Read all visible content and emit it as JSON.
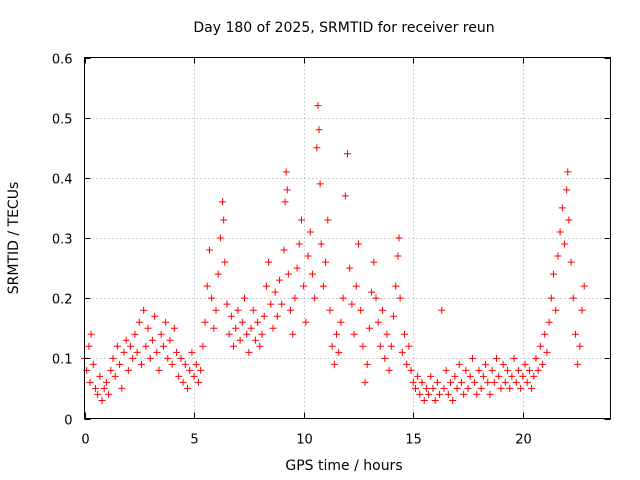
{
  "chart_data": {
    "type": "scatter",
    "title": "Day 180 of 2025, SRMTID for receiver reun",
    "xlabel": "GPS time / hours",
    "ylabel": "SRMTID / TECUs",
    "xlim": [
      0,
      24
    ],
    "ylim": [
      0,
      0.6
    ],
    "xticks": [
      0,
      5,
      10,
      15,
      20
    ],
    "xtick_labels": [
      "0",
      "5",
      "10",
      "15",
      "20"
    ],
    "yticks": [
      0,
      0.1,
      0.2,
      0.3,
      0.4,
      0.5,
      0.6
    ],
    "ytick_labels": [
      "0",
      "0.1",
      "0.2",
      "0.3",
      "0.4",
      "0.5",
      "0.6"
    ],
    "grid": true,
    "marker": "+",
    "color": "#ff0000",
    "series": [
      {
        "name": "SRMTID",
        "points": [
          [
            0.0,
            0.1
          ],
          [
            0.1,
            0.08
          ],
          [
            0.2,
            0.12
          ],
          [
            0.25,
            0.06
          ],
          [
            0.3,
            0.14
          ],
          [
            0.4,
            0.09
          ],
          [
            0.5,
            0.05
          ],
          [
            0.6,
            0.04
          ],
          [
            0.7,
            0.07
          ],
          [
            0.8,
            0.03
          ],
          [
            0.9,
            0.05
          ],
          [
            1.0,
            0.06
          ],
          [
            1.1,
            0.04
          ],
          [
            1.2,
            0.08
          ],
          [
            1.3,
            0.1
          ],
          [
            1.4,
            0.07
          ],
          [
            1.5,
            0.12
          ],
          [
            1.6,
            0.09
          ],
          [
            1.7,
            0.05
          ],
          [
            1.8,
            0.11
          ],
          [
            1.9,
            0.13
          ],
          [
            2.0,
            0.08
          ],
          [
            2.1,
            0.12
          ],
          [
            2.2,
            0.1
          ],
          [
            2.3,
            0.14
          ],
          [
            2.4,
            0.11
          ],
          [
            2.5,
            0.16
          ],
          [
            2.6,
            0.09
          ],
          [
            2.7,
            0.18
          ],
          [
            2.8,
            0.12
          ],
          [
            2.9,
            0.15
          ],
          [
            3.0,
            0.1
          ],
          [
            3.1,
            0.13
          ],
          [
            3.2,
            0.17
          ],
          [
            3.3,
            0.11
          ],
          [
            3.4,
            0.08
          ],
          [
            3.5,
            0.14
          ],
          [
            3.6,
            0.12
          ],
          [
            3.7,
            0.16
          ],
          [
            3.8,
            0.1
          ],
          [
            3.9,
            0.13
          ],
          [
            4.0,
            0.09
          ],
          [
            4.1,
            0.15
          ],
          [
            4.2,
            0.11
          ],
          [
            4.3,
            0.07
          ],
          [
            4.4,
            0.1
          ],
          [
            4.5,
            0.06
          ],
          [
            4.6,
            0.09
          ],
          [
            4.7,
            0.05
          ],
          [
            4.8,
            0.08
          ],
          [
            4.9,
            0.11
          ],
          [
            5.0,
            0.07
          ],
          [
            5.1,
            0.09
          ],
          [
            5.2,
            0.06
          ],
          [
            5.3,
            0.08
          ],
          [
            5.4,
            0.12
          ],
          [
            5.5,
            0.16
          ],
          [
            5.6,
            0.22
          ],
          [
            5.7,
            0.28
          ],
          [
            5.8,
            0.2
          ],
          [
            5.9,
            0.15
          ],
          [
            6.0,
            0.18
          ],
          [
            6.1,
            0.24
          ],
          [
            6.2,
            0.3
          ],
          [
            6.3,
            0.36
          ],
          [
            6.35,
            0.33
          ],
          [
            6.4,
            0.26
          ],
          [
            6.5,
            0.19
          ],
          [
            6.6,
            0.14
          ],
          [
            6.7,
            0.17
          ],
          [
            6.8,
            0.12
          ],
          [
            6.9,
            0.15
          ],
          [
            7.0,
            0.18
          ],
          [
            7.1,
            0.13
          ],
          [
            7.2,
            0.16
          ],
          [
            7.3,
            0.2
          ],
          [
            7.4,
            0.14
          ],
          [
            7.5,
            0.11
          ],
          [
            7.6,
            0.15
          ],
          [
            7.7,
            0.18
          ],
          [
            7.8,
            0.13
          ],
          [
            7.9,
            0.16
          ],
          [
            8.0,
            0.12
          ],
          [
            8.1,
            0.14
          ],
          [
            8.2,
            0.17
          ],
          [
            8.3,
            0.22
          ],
          [
            8.4,
            0.26
          ],
          [
            8.5,
            0.19
          ],
          [
            8.6,
            0.15
          ],
          [
            8.7,
            0.21
          ],
          [
            8.8,
            0.17
          ],
          [
            8.9,
            0.23
          ],
          [
            9.0,
            0.19
          ],
          [
            9.1,
            0.28
          ],
          [
            9.15,
            0.36
          ],
          [
            9.2,
            0.41
          ],
          [
            9.25,
            0.38
          ],
          [
            9.3,
            0.24
          ],
          [
            9.4,
            0.18
          ],
          [
            9.5,
            0.14
          ],
          [
            9.6,
            0.2
          ],
          [
            9.7,
            0.25
          ],
          [
            9.8,
            0.29
          ],
          [
            9.9,
            0.33
          ],
          [
            10.0,
            0.22
          ],
          [
            10.1,
            0.16
          ],
          [
            10.2,
            0.27
          ],
          [
            10.3,
            0.31
          ],
          [
            10.4,
            0.24
          ],
          [
            10.5,
            0.2
          ],
          [
            10.6,
            0.45
          ],
          [
            10.65,
            0.52
          ],
          [
            10.7,
            0.48
          ],
          [
            10.75,
            0.39
          ],
          [
            10.8,
            0.29
          ],
          [
            10.9,
            0.22
          ],
          [
            11.0,
            0.26
          ],
          [
            11.1,
            0.33
          ],
          [
            11.2,
            0.18
          ],
          [
            11.3,
            0.12
          ],
          [
            11.4,
            0.09
          ],
          [
            11.5,
            0.14
          ],
          [
            11.6,
            0.11
          ],
          [
            11.7,
            0.16
          ],
          [
            11.8,
            0.2
          ],
          [
            11.9,
            0.37
          ],
          [
            12.0,
            0.44
          ],
          [
            12.1,
            0.25
          ],
          [
            12.2,
            0.19
          ],
          [
            12.3,
            0.14
          ],
          [
            12.4,
            0.22
          ],
          [
            12.5,
            0.29
          ],
          [
            12.6,
            0.18
          ],
          [
            12.7,
            0.12
          ],
          [
            12.8,
            0.06
          ],
          [
            12.9,
            0.09
          ],
          [
            13.0,
            0.15
          ],
          [
            13.1,
            0.21
          ],
          [
            13.2,
            0.26
          ],
          [
            13.3,
            0.2
          ],
          [
            13.4,
            0.16
          ],
          [
            13.5,
            0.12
          ],
          [
            13.6,
            0.18
          ],
          [
            13.7,
            0.1
          ],
          [
            13.8,
            0.14
          ],
          [
            13.9,
            0.08
          ],
          [
            14.0,
            0.12
          ],
          [
            14.1,
            0.17
          ],
          [
            14.2,
            0.22
          ],
          [
            14.3,
            0.27
          ],
          [
            14.35,
            0.3
          ],
          [
            14.4,
            0.2
          ],
          [
            14.5,
            0.11
          ],
          [
            14.6,
            0.14
          ],
          [
            14.7,
            0.09
          ],
          [
            14.8,
            0.12
          ],
          [
            14.9,
            0.08
          ],
          [
            15.0,
            0.06
          ],
          [
            15.1,
            0.05
          ],
          [
            15.2,
            0.07
          ],
          [
            15.3,
            0.04
          ],
          [
            15.4,
            0.06
          ],
          [
            15.5,
            0.03
          ],
          [
            15.6,
            0.05
          ],
          [
            15.7,
            0.04
          ],
          [
            15.8,
            0.07
          ],
          [
            15.9,
            0.05
          ],
          [
            16.0,
            0.03
          ],
          [
            16.1,
            0.06
          ],
          [
            16.2,
            0.04
          ],
          [
            16.3,
            0.18
          ],
          [
            16.4,
            0.05
          ],
          [
            16.5,
            0.08
          ],
          [
            16.6,
            0.04
          ],
          [
            16.7,
            0.06
          ],
          [
            16.8,
            0.03
          ],
          [
            16.9,
            0.07
          ],
          [
            17.0,
            0.05
          ],
          [
            17.1,
            0.09
          ],
          [
            17.2,
            0.06
          ],
          [
            17.3,
            0.04
          ],
          [
            17.4,
            0.08
          ],
          [
            17.5,
            0.05
          ],
          [
            17.6,
            0.07
          ],
          [
            17.7,
            0.1
          ],
          [
            17.8,
            0.06
          ],
          [
            17.9,
            0.04
          ],
          [
            18.0,
            0.08
          ],
          [
            18.1,
            0.05
          ],
          [
            18.2,
            0.07
          ],
          [
            18.3,
            0.09
          ],
          [
            18.4,
            0.06
          ],
          [
            18.5,
            0.04
          ],
          [
            18.6,
            0.08
          ],
          [
            18.7,
            0.06
          ],
          [
            18.8,
            0.1
          ],
          [
            18.9,
            0.07
          ],
          [
            19.0,
            0.05
          ],
          [
            19.1,
            0.09
          ],
          [
            19.2,
            0.06
          ],
          [
            19.3,
            0.08
          ],
          [
            19.4,
            0.05
          ],
          [
            19.5,
            0.07
          ],
          [
            19.6,
            0.1
          ],
          [
            19.7,
            0.06
          ],
          [
            19.8,
            0.08
          ],
          [
            19.9,
            0.05
          ],
          [
            20.0,
            0.07
          ],
          [
            20.1,
            0.09
          ],
          [
            20.2,
            0.06
          ],
          [
            20.3,
            0.08
          ],
          [
            20.4,
            0.05
          ],
          [
            20.5,
            0.07
          ],
          [
            20.6,
            0.1
          ],
          [
            20.7,
            0.08
          ],
          [
            20.8,
            0.12
          ],
          [
            20.9,
            0.09
          ],
          [
            21.0,
            0.14
          ],
          [
            21.1,
            0.11
          ],
          [
            21.2,
            0.16
          ],
          [
            21.3,
            0.2
          ],
          [
            21.4,
            0.24
          ],
          [
            21.5,
            0.18
          ],
          [
            21.6,
            0.27
          ],
          [
            21.7,
            0.31
          ],
          [
            21.8,
            0.35
          ],
          [
            21.9,
            0.29
          ],
          [
            22.0,
            0.38
          ],
          [
            22.05,
            0.41
          ],
          [
            22.1,
            0.33
          ],
          [
            22.2,
            0.26
          ],
          [
            22.3,
            0.2
          ],
          [
            22.4,
            0.14
          ],
          [
            22.5,
            0.09
          ],
          [
            22.6,
            0.12
          ],
          [
            22.7,
            0.18
          ],
          [
            22.8,
            0.22
          ]
        ]
      }
    ]
  }
}
